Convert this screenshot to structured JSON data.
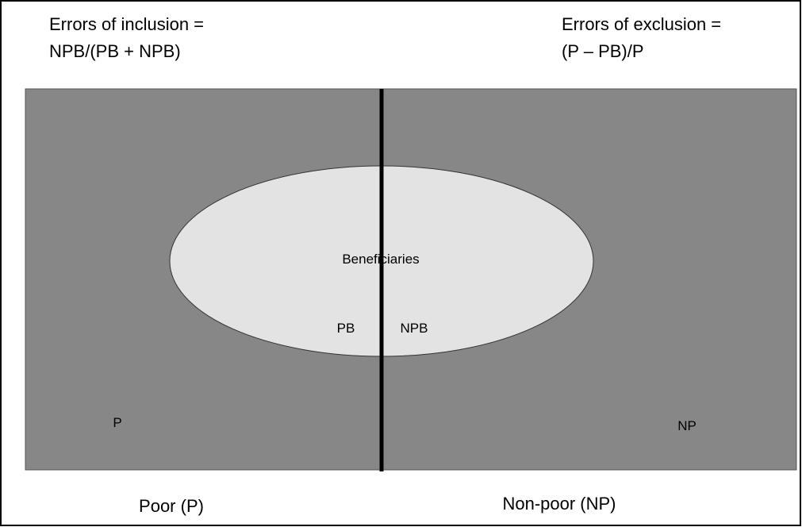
{
  "formulas": {
    "inclusion": {
      "line1": "Errors of  inclusion =",
      "line2": "NPB/(PB + NPB)"
    },
    "exclusion": {
      "line1": "Errors of exclusion =",
      "line2": "(P – PB)/P"
    }
  },
  "ellipse": {
    "label": "Beneficiaries",
    "left": "PB",
    "right": "NPB"
  },
  "regions": {
    "left": "P",
    "right": "NP"
  },
  "footer": {
    "left": "Poor (P)",
    "right": "Non-poor (NP)"
  }
}
